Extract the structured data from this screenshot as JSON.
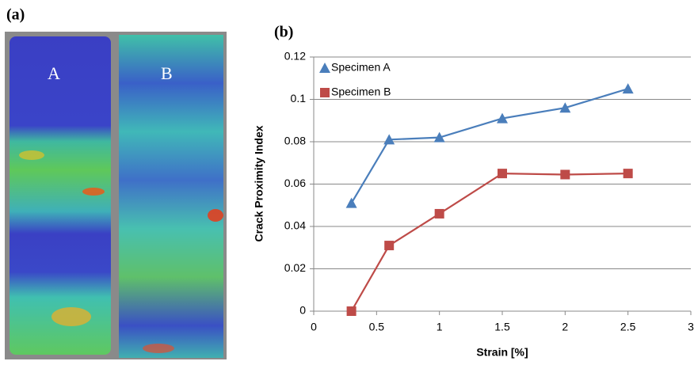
{
  "panel_a": {
    "label": "(a)",
    "specimens": [
      "A",
      "B"
    ]
  },
  "chart_data": {
    "type": "line",
    "panel_label": "(b)",
    "x_label": "Strain [%]",
    "y_label": "Crack Proximity Index",
    "x": [
      0.3,
      0.6,
      1,
      1.5,
      2,
      2.5
    ],
    "series": [
      {
        "name": "Specimen A",
        "color": "#4a7ebb",
        "marker": "triangle",
        "values": [
          0.051,
          0.081,
          0.082,
          0.091,
          0.096,
          0.105
        ]
      },
      {
        "name": "Specimen B",
        "color": "#be4b48",
        "marker": "square",
        "values": [
          0,
          0.031,
          0.046,
          0.065,
          0.0645,
          0.065
        ]
      }
    ],
    "xlim": [
      0,
      3
    ],
    "xticks": [
      0,
      0.5,
      1,
      1.5,
      2,
      2.5,
      3
    ],
    "ylim": [
      0,
      0.12
    ],
    "yticks": [
      0,
      0.02,
      0.04,
      0.06,
      0.08,
      0.1,
      0.12
    ],
    "grid": true,
    "legend": "top-left"
  }
}
